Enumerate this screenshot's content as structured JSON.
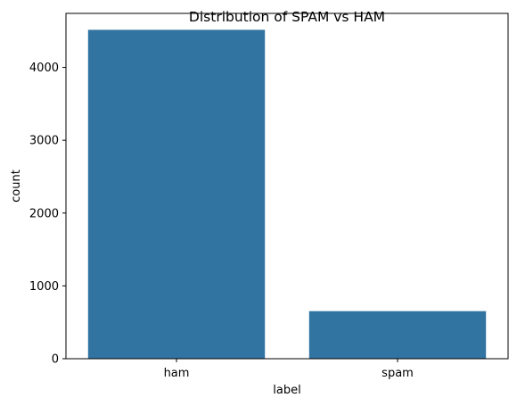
{
  "chart_data": {
    "type": "bar",
    "title": "Distribution of SPAM vs HAM",
    "xlabel": "label",
    "ylabel": "count",
    "categories": [
      "ham",
      "spam"
    ],
    "values": [
      4516,
      653
    ],
    "ylim": [
      0,
      4741.8
    ],
    "yticks": [
      0,
      1000,
      2000,
      3000,
      4000
    ],
    "bar_color": "#3274a1",
    "grid": false,
    "legend": "none"
  }
}
